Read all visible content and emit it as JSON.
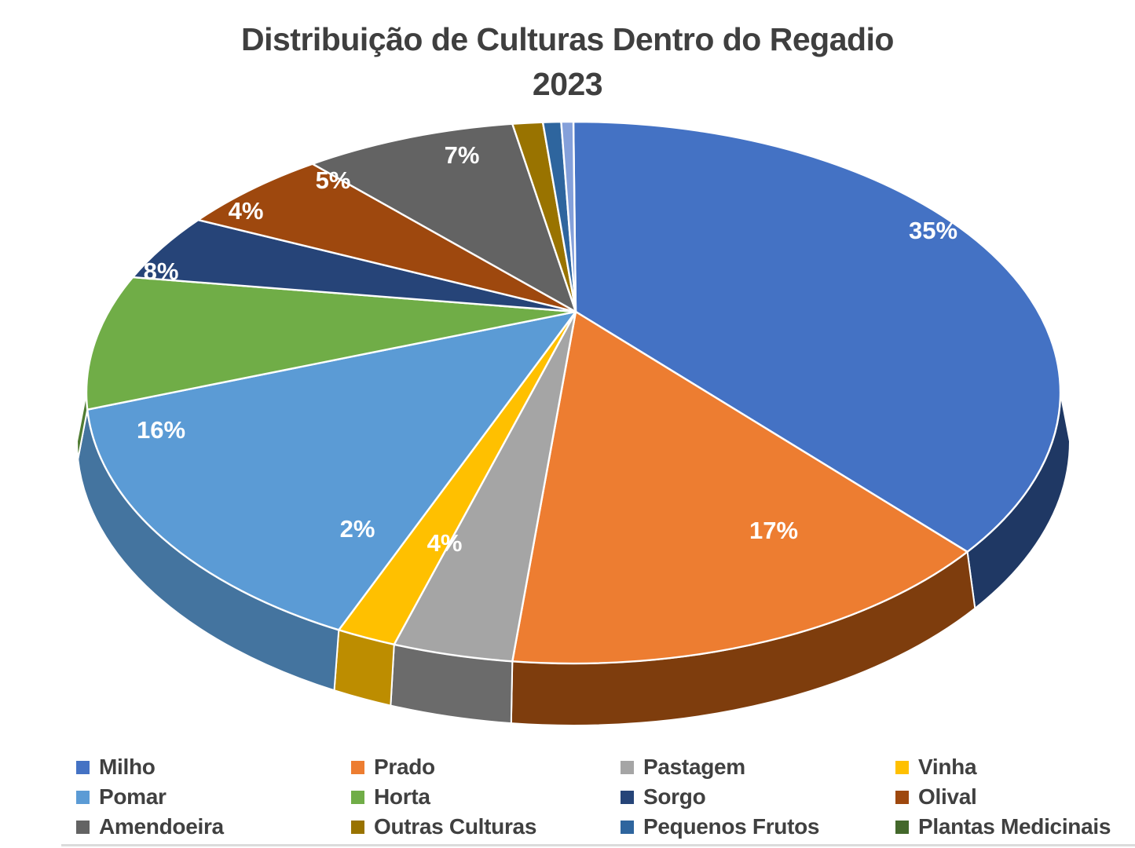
{
  "title": {
    "line1": "Distribuição de Culturas Dentro do Regadio",
    "line2": "2023"
  },
  "colors": {
    "background": "#FFFFFF",
    "title_text": "#3F3F3F",
    "legend_text": "#404040",
    "data_label_text": "#FFFFFF",
    "slice_border": "#FFFFFF"
  },
  "chart_data": {
    "type": "pie",
    "style": "3d",
    "title": "Distribuição de Culturas Dentro do Regadio 2023",
    "legend_position": "bottom",
    "data_labels": "percent, white, shown for slices >= 2%",
    "slices": [
      {
        "label": "Milho",
        "pct": 35,
        "color": "#4472C4",
        "side": "#1F3864"
      },
      {
        "label": "Prado",
        "pct": 17,
        "color": "#ED7D31",
        "side": "#7E3D0D"
      },
      {
        "label": "Pastagem",
        "pct": 4,
        "color": "#A5A5A5",
        "side": "#6B6B6B"
      },
      {
        "label": "Vinha",
        "pct": 2,
        "color": "#FFC000",
        "side": "#BD8D00"
      },
      {
        "label": "Pomar",
        "pct": 16,
        "color": "#5B9BD5",
        "side": "#44749F"
      },
      {
        "label": "Horta",
        "pct": 8,
        "color": "#70AD47",
        "side": "#507C33"
      },
      {
        "label": "Sorgo",
        "pct": 4,
        "color": "#264478",
        "side": "#1A2F54"
      },
      {
        "label": "Olival",
        "pct": 5,
        "color": "#9E480E",
        "side": "#6E320A"
      },
      {
        "label": "Amendoeira",
        "pct": 7,
        "color": "#636363",
        "side": "#474747"
      },
      {
        "label": "Outras Culturas",
        "pct": 1,
        "color": "#997300",
        "side": "#6B5000"
      },
      {
        "label": "Pequenos Frutos",
        "pct": 0.6,
        "color": "#2E659E",
        "side": "#20466E"
      },
      {
        "label": "",
        "pct": 0.4,
        "color": "#84A0DA",
        "side": "#5C70A0"
      },
      {
        "label": "Plantas Medicinais",
        "pct": 0,
        "color": "#43682B",
        "side": "#2F4A1E"
      }
    ],
    "legend": [
      {
        "label": "Milho",
        "color": "#4472C4"
      },
      {
        "label": "Prado",
        "color": "#ED7D31"
      },
      {
        "label": "Pastagem",
        "color": "#A5A5A5"
      },
      {
        "label": "Vinha",
        "color": "#FFC000"
      },
      {
        "label": "Pomar",
        "color": "#5B9BD5"
      },
      {
        "label": "Horta",
        "color": "#70AD47"
      },
      {
        "label": "Sorgo",
        "color": "#264478"
      },
      {
        "label": "Olival",
        "color": "#9E480E"
      },
      {
        "label": "Amendoeira",
        "color": "#636363"
      },
      {
        "label": "Outras Culturas",
        "color": "#997300"
      },
      {
        "label": "Pequenos Frutos",
        "color": "#2E659E"
      },
      {
        "label": "Plantas Medicinais",
        "color": "#43682B"
      }
    ]
  }
}
